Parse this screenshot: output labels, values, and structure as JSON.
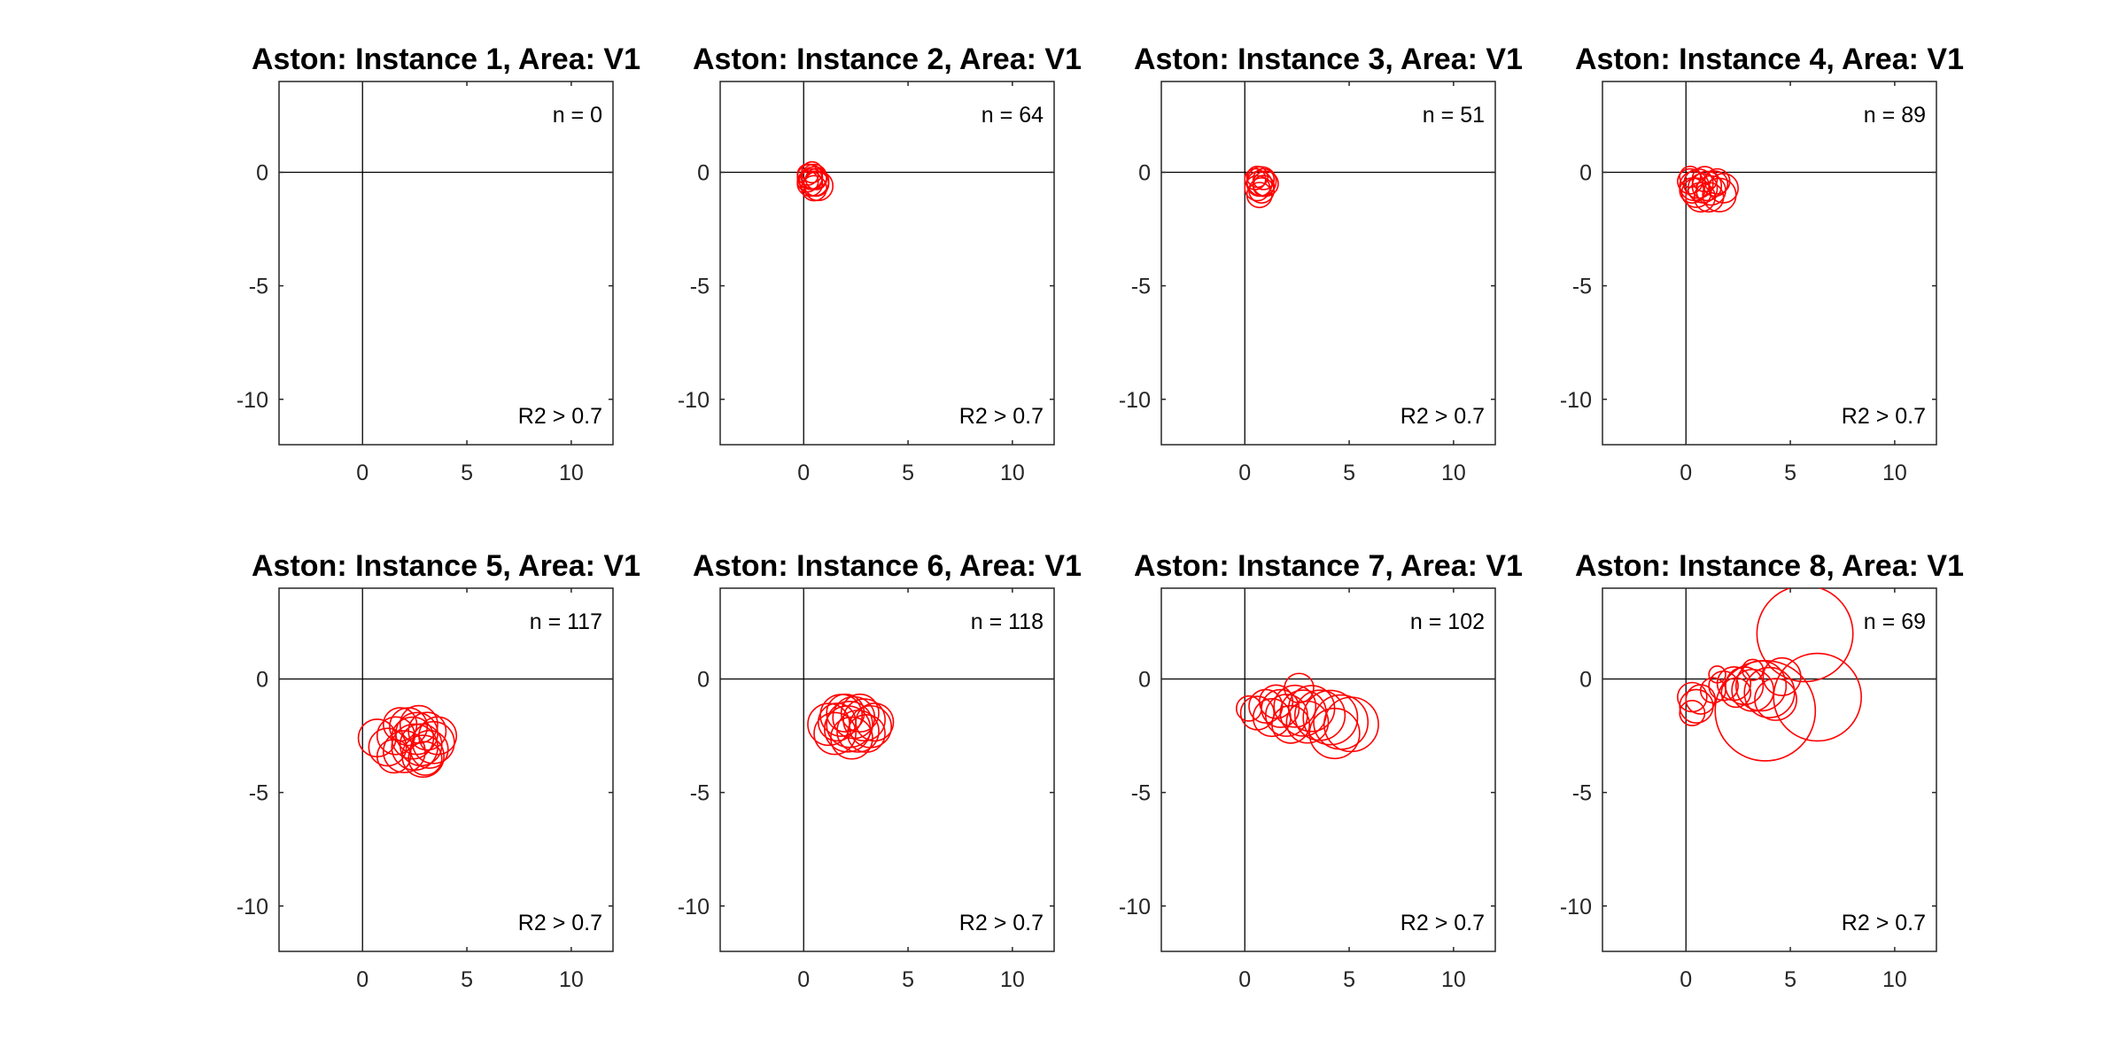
{
  "figure": {
    "condition": "R2 > 0.7"
  },
  "chart_data": [
    {
      "type": "scatter",
      "title": "Aston: Instance 1, Area: V1",
      "annotation_count": "n = 0",
      "annotation_filter": "R2 > 0.7",
      "xlim": [
        -4,
        12
      ],
      "ylim": [
        -12,
        4
      ],
      "xticks": [
        0,
        5,
        10
      ],
      "yticks": [
        0,
        -5,
        -10
      ],
      "color": "#ff0000",
      "grid": false,
      "n": 0,
      "circles": []
    },
    {
      "type": "scatter",
      "title": "Aston: Instance 2, Area: V1",
      "annotation_count": "n = 64",
      "annotation_filter": "R2 > 0.7",
      "xlim": [
        -4,
        12
      ],
      "ylim": [
        -12,
        4
      ],
      "xticks": [
        0,
        5,
        10
      ],
      "yticks": [
        0,
        -5,
        -10
      ],
      "color": "#ff0000",
      "grid": false,
      "n": 64,
      "circles": [
        [
          0.3,
          -0.2,
          0.6
        ],
        [
          0.5,
          -0.4,
          0.7
        ],
        [
          0.4,
          -0.3,
          0.5
        ],
        [
          0.6,
          -0.5,
          0.6
        ],
        [
          0.2,
          -0.1,
          0.5
        ],
        [
          0.5,
          -0.2,
          0.6
        ],
        [
          0.7,
          -0.6,
          0.7
        ],
        [
          0.3,
          -0.5,
          0.6
        ],
        [
          0.4,
          0.0,
          0.5
        ],
        [
          0.6,
          -0.3,
          0.5
        ],
        [
          0.5,
          -0.7,
          0.6
        ],
        [
          0.2,
          -0.4,
          0.5
        ]
      ]
    },
    {
      "type": "scatter",
      "title": "Aston: Instance 3, Area: V1",
      "annotation_count": "n = 51",
      "annotation_filter": "R2 > 0.7",
      "xlim": [
        -4,
        12
      ],
      "ylim": [
        -12,
        4
      ],
      "xticks": [
        0,
        5,
        10
      ],
      "yticks": [
        0,
        -5,
        -10
      ],
      "color": "#ff0000",
      "grid": false,
      "n": 51,
      "circles": [
        [
          0.7,
          -0.5,
          0.6
        ],
        [
          0.8,
          -0.4,
          0.7
        ],
        [
          0.6,
          -0.7,
          0.6
        ],
        [
          0.9,
          -0.6,
          0.5
        ],
        [
          0.5,
          -0.3,
          0.5
        ],
        [
          0.8,
          -0.8,
          0.6
        ],
        [
          0.7,
          -1.0,
          0.6
        ],
        [
          1.0,
          -0.5,
          0.6
        ],
        [
          0.6,
          -0.2,
          0.5
        ],
        [
          0.9,
          -0.3,
          0.5
        ]
      ]
    },
    {
      "type": "scatter",
      "title": "Aston: Instance 4, Area: V1",
      "annotation_count": "n = 89",
      "annotation_filter": "R2 > 0.7",
      "xlim": [
        -4,
        12
      ],
      "ylim": [
        -12,
        4
      ],
      "xticks": [
        0,
        5,
        10
      ],
      "yticks": [
        0,
        -5,
        -10
      ],
      "color": "#ff0000",
      "grid": false,
      "n": 89,
      "circles": [
        [
          0.2,
          -0.4,
          0.6
        ],
        [
          0.4,
          -0.6,
          0.7
        ],
        [
          0.6,
          -0.5,
          0.7
        ],
        [
          0.8,
          -0.7,
          0.7
        ],
        [
          1.0,
          -0.6,
          0.7
        ],
        [
          0.3,
          -0.8,
          0.6
        ],
        [
          0.5,
          -0.9,
          0.7
        ],
        [
          1.2,
          -0.8,
          0.7
        ],
        [
          1.4,
          -0.5,
          0.6
        ],
        [
          1.6,
          -1.0,
          0.8
        ],
        [
          1.5,
          -0.4,
          0.6
        ],
        [
          0.2,
          -0.2,
          0.5
        ],
        [
          0.7,
          -1.1,
          0.7
        ],
        [
          1.1,
          -1.1,
          0.7
        ],
        [
          0.9,
          -0.3,
          0.6
        ],
        [
          1.8,
          -0.7,
          0.7
        ]
      ]
    },
    {
      "type": "scatter",
      "title": "Aston: Instance 5, Area: V1",
      "annotation_count": "n = 117",
      "annotation_filter": "R2 > 0.7",
      "xlim": [
        -4,
        12
      ],
      "ylim": [
        -12,
        4
      ],
      "xticks": [
        0,
        5,
        10
      ],
      "yticks": [
        0,
        -5,
        -10
      ],
      "color": "#ff0000",
      "grid": false,
      "n": 117,
      "circles": [
        [
          0.7,
          -2.6,
          0.9
        ],
        [
          1.2,
          -3.0,
          0.9
        ],
        [
          1.6,
          -2.5,
          0.9
        ],
        [
          2.0,
          -3.2,
          1.0
        ],
        [
          2.4,
          -2.6,
          1.0
        ],
        [
          2.8,
          -2.9,
          1.0
        ],
        [
          3.1,
          -2.3,
          0.9
        ],
        [
          3.4,
          -2.8,
          1.0
        ],
        [
          2.2,
          -2.1,
          0.9
        ],
        [
          2.9,
          -3.4,
          1.0
        ],
        [
          1.8,
          -2.0,
          0.8
        ],
        [
          3.2,
          -3.1,
          0.9
        ],
        [
          2.6,
          -2.4,
          1.0
        ],
        [
          1.5,
          -3.4,
          0.8
        ],
        [
          3.6,
          -2.5,
          0.9
        ],
        [
          2.5,
          -3.0,
          1.1
        ],
        [
          2.7,
          -2.0,
          0.9
        ],
        [
          3.0,
          -3.5,
          0.8
        ]
      ]
    },
    {
      "type": "scatter",
      "title": "Aston: Instance 6, Area: V1",
      "annotation_count": "n = 118",
      "annotation_filter": "R2 > 0.7",
      "xlim": [
        -4,
        12
      ],
      "ylim": [
        -12,
        4
      ],
      "xticks": [
        0,
        5,
        10
      ],
      "yticks": [
        0,
        -5,
        -10
      ],
      "color": "#ff0000",
      "grid": false,
      "n": 118,
      "circles": [
        [
          1.2,
          -2.0,
          1.0
        ],
        [
          1.5,
          -2.4,
          1.0
        ],
        [
          1.8,
          -1.6,
          1.0
        ],
        [
          2.1,
          -2.2,
          1.1
        ],
        [
          2.4,
          -1.7,
          1.0
        ],
        [
          2.6,
          -2.3,
          1.0
        ],
        [
          2.9,
          -1.8,
          1.0
        ],
        [
          3.2,
          -2.1,
          1.0
        ],
        [
          2.0,
          -1.5,
          0.9
        ],
        [
          2.3,
          -2.6,
          1.0
        ],
        [
          3.0,
          -2.4,
          0.9
        ],
        [
          1.6,
          -1.9,
          0.9
        ],
        [
          2.7,
          -1.5,
          0.9
        ],
        [
          3.4,
          -1.9,
          0.9
        ],
        [
          2.2,
          -2.0,
          1.1
        ]
      ]
    },
    {
      "type": "scatter",
      "title": "Aston: Instance 7, Area: V1",
      "annotation_count": "n = 102",
      "annotation_filter": "R2 > 0.7",
      "xlim": [
        -4,
        12
      ],
      "ylim": [
        -12,
        4
      ],
      "xticks": [
        0,
        5,
        10
      ],
      "yticks": [
        0,
        -5,
        -10
      ],
      "color": "#ff0000",
      "grid": false,
      "n": 102,
      "circles": [
        [
          0.2,
          -1.3,
          0.6
        ],
        [
          0.6,
          -1.5,
          0.8
        ],
        [
          1.0,
          -1.2,
          0.8
        ],
        [
          1.3,
          -1.7,
          0.9
        ],
        [
          1.7,
          -1.3,
          0.9
        ],
        [
          2.0,
          -1.6,
          1.0
        ],
        [
          2.4,
          -1.2,
          1.0
        ],
        [
          2.8,
          -1.5,
          1.1
        ],
        [
          3.2,
          -1.3,
          1.1
        ],
        [
          3.6,
          -1.6,
          1.2
        ],
        [
          4.1,
          -1.7,
          1.3
        ],
        [
          4.6,
          -1.9,
          1.3
        ],
        [
          5.1,
          -2.0,
          1.3
        ],
        [
          2.6,
          -0.4,
          0.7
        ],
        [
          1.5,
          -1.0,
          0.8
        ],
        [
          3.0,
          -1.9,
          1.0
        ],
        [
          4.3,
          -2.4,
          1.2
        ],
        [
          2.2,
          -2.0,
          0.9
        ]
      ]
    },
    {
      "type": "scatter",
      "title": "Aston: Instance 8, Area: V1",
      "annotation_count": "n = 69",
      "annotation_filter": "R2 > 0.7",
      "xlim": [
        -4,
        12
      ],
      "ylim": [
        -12,
        4
      ],
      "xticks": [
        0,
        5,
        10
      ],
      "yticks": [
        0,
        -5,
        -10
      ],
      "color": "#ff0000",
      "grid": false,
      "n": 69,
      "circles": [
        [
          0.3,
          -0.8,
          0.7
        ],
        [
          0.5,
          -1.2,
          0.8
        ],
        [
          0.7,
          -0.9,
          0.7
        ],
        [
          0.3,
          -1.5,
          0.6
        ],
        [
          1.3,
          -0.5,
          0.6
        ],
        [
          1.8,
          -0.3,
          0.7
        ],
        [
          2.3,
          -0.2,
          0.8
        ],
        [
          2.8,
          -0.3,
          0.9
        ],
        [
          3.2,
          -0.5,
          1.0
        ],
        [
          3.6,
          -0.3,
          1.2
        ],
        [
          4.0,
          -0.6,
          1.2
        ],
        [
          4.3,
          -0.9,
          1.0
        ],
        [
          3.8,
          -1.4,
          2.4
        ],
        [
          6.3,
          -0.8,
          2.1
        ],
        [
          5.7,
          2.0,
          2.3
        ],
        [
          3.2,
          0.4,
          0.5
        ],
        [
          1.5,
          0.2,
          0.4
        ],
        [
          4.6,
          0.1,
          0.9
        ],
        [
          2.4,
          -0.6,
          0.7
        ]
      ]
    }
  ]
}
